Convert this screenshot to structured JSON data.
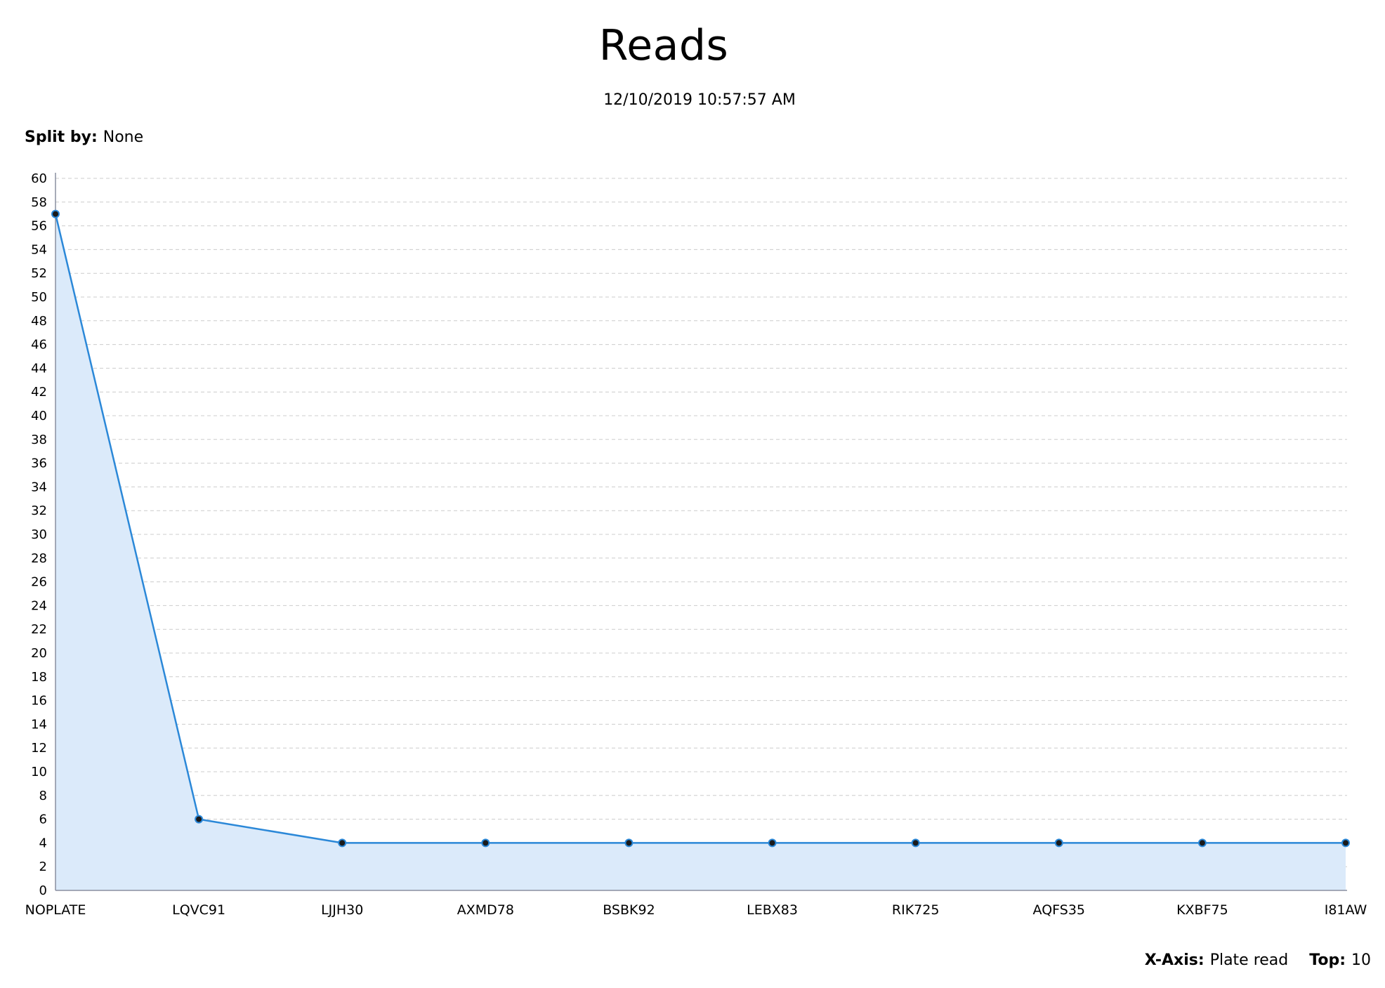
{
  "header": {
    "title": "Reads",
    "timestamp": "12/10/2019 10:57:57 AM",
    "split_by_label": "Split by:",
    "split_by_value": "None"
  },
  "footer": {
    "x_axis_label": "X-Axis:",
    "x_axis_value": "Plate read",
    "top_label": "Top:",
    "top_value": "10"
  },
  "colors": {
    "line": "#2b88d8",
    "area": "#dbeafa",
    "point_fill": "#1a1a1a",
    "grid": "#cccccc",
    "axis": "#8a8fa0"
  },
  "chart_data": {
    "type": "area",
    "categories": [
      "NOPLATE",
      "LQVC91",
      "LJJH30",
      "AXMD78",
      "BSBK92",
      "LEBX83",
      "RIK725",
      "AQFS35",
      "KXBF75",
      "I81AW"
    ],
    "values": [
      57,
      6,
      4,
      4,
      4,
      4,
      4,
      4,
      4,
      4
    ],
    "ylim": [
      0,
      60
    ],
    "y_tick_step": 2,
    "grid": true,
    "legend": "none"
  }
}
